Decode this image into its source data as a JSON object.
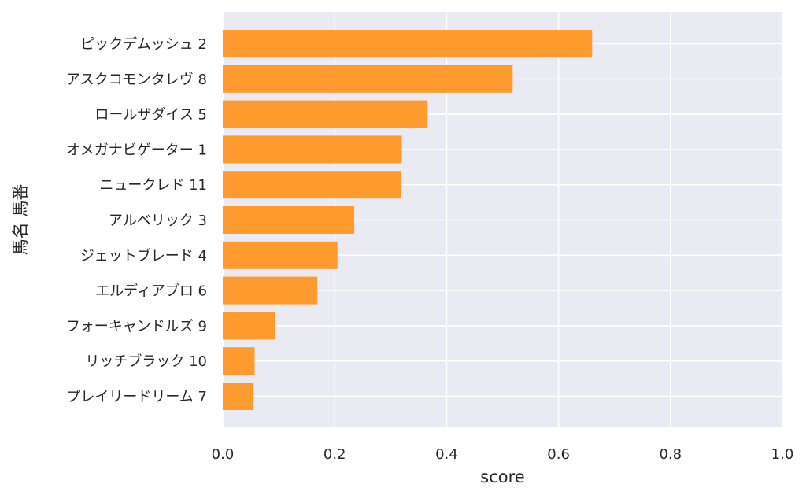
{
  "chart_data": {
    "type": "bar",
    "orientation": "horizontal",
    "categories": [
      "ピックデムッシュ 2",
      "アスクコモンタレヴ 8",
      "ロールザダイス 5",
      "オメガナビゲーター 1",
      "ニュークレド 11",
      "アルベリック 3",
      "ジェットブレード 4",
      "エルディアブロ 6",
      "フォーキャンドルズ 9",
      "リッチブラック 10",
      "プレイリードリーム 7"
    ],
    "values": [
      0.66,
      0.518,
      0.366,
      0.32,
      0.319,
      0.235,
      0.205,
      0.169,
      0.094,
      0.057,
      0.055
    ],
    "xlabel": "score",
    "ylabel": "馬名 馬番",
    "xlim": [
      0,
      1.0
    ],
    "xticks": [
      "0.0",
      "0.2",
      "0.4",
      "0.6",
      "0.8",
      "1.0"
    ],
    "xtick_values": [
      0,
      0.2,
      0.4,
      0.6,
      0.8,
      1.0
    ],
    "grid": true,
    "colors": {
      "bar": "#ff9a2e",
      "background": "#eaeaf2",
      "grid": "#ffffff"
    }
  }
}
